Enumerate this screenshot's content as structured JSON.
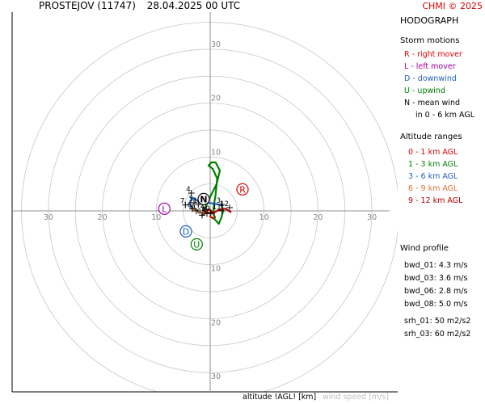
{
  "header": {
    "station": "PROSTEJOV (11747)",
    "datetime": "28.04.2025 00 UTC",
    "copyright": "CHMI © 2025"
  },
  "sidebar": {
    "title": "HODOGRAPH",
    "storm_motions_heading": "Storm motions",
    "storm_motions": [
      {
        "text": "R - right mover",
        "color": "#e00000"
      },
      {
        "text": "L - left mover",
        "color": "#a000a0"
      },
      {
        "text": "D - downwind",
        "color": "#2060c0"
      },
      {
        "text": "U - upwind",
        "color": "#008000"
      },
      {
        "text": "N - mean wind",
        "color": "#000000"
      }
    ],
    "storm_motions_note": "in 0 - 6 km AGL",
    "altitude_heading": "Altitude ranges",
    "altitude_ranges": [
      {
        "text": "0 - 1 km AGL",
        "color": "#e00000"
      },
      {
        "text": "1 - 3 km AGL",
        "color": "#008000"
      },
      {
        "text": "3 - 6 km AGL",
        "color": "#2060c0"
      },
      {
        "text": "6 - 9 km AGL",
        "color": "#e07030"
      },
      {
        "text": "9 - 12 km AGL",
        "color": "#b00000"
      }
    ],
    "wind_profile_heading": "Wind profile",
    "bulk_shear": [
      "bwd_01: 4.3 m/s",
      "bwd_03: 3.6 m/s",
      "bwd_06: 2.8 m/s",
      "bwd_08: 5.0 m/s"
    ],
    "helicity": [
      "srh_01: 50 m2/s2",
      "srh_03: 60 m2/s2"
    ]
  },
  "footer": {
    "altitude_label": "altitude !AGL! [km]",
    "wind_label": "wind speed [m/s]"
  },
  "chart_data": {
    "type": "line",
    "ring_step": 5,
    "ring_max": 35,
    "axis_tick_labels": [
      "10",
      "20",
      "30"
    ],
    "grid": true,
    "colors": {
      "ring": "#c8c8c8",
      "axis": "#909090",
      "tick_text": "#888888"
    },
    "segments": [
      {
        "name": "0 - 1 km AGL",
        "color": "#e00000",
        "points": [
          [
            0.0,
            -1.0
          ],
          [
            0.5,
            -1.4
          ],
          [
            0.9,
            -1.2
          ],
          [
            0.6,
            -0.6
          ],
          [
            0.2,
            0.0
          ],
          [
            -0.2,
            0.3
          ],
          [
            -0.6,
            0.0
          ],
          [
            -1.0,
            -0.5
          ],
          [
            -1.5,
            -0.8
          ]
        ]
      },
      {
        "name": "1 - 3 km AGL",
        "color": "#008000",
        "points": [
          [
            -1.5,
            -0.8
          ],
          [
            -0.3,
            2.0
          ],
          [
            1.2,
            5.0
          ],
          [
            1.8,
            7.5
          ],
          [
            1.0,
            9.0
          ],
          [
            0.2,
            9.0
          ],
          [
            -0.3,
            8.4
          ],
          [
            0.5,
            7.8
          ],
          [
            1.3,
            6.0
          ],
          [
            1.0,
            3.0
          ],
          [
            0.6,
            0.5
          ],
          [
            0.8,
            -1.5
          ],
          [
            1.6,
            -2.4
          ],
          [
            2.1,
            -1.2
          ],
          [
            2.4,
            0.0
          ],
          [
            2.2,
            1.0
          ]
        ]
      },
      {
        "name": "3 - 6 km AGL",
        "color": "#2060c0",
        "points": [
          [
            2.2,
            1.0
          ],
          [
            0.6,
            1.4
          ],
          [
            -0.8,
            1.5
          ],
          [
            -2.2,
            1.8
          ],
          [
            -3.4,
            2.5
          ],
          [
            -3.8,
            1.2
          ],
          [
            -3.4,
            0.4
          ]
        ]
      },
      {
        "name": "6 - 9 km AGL",
        "color": "#e07030",
        "points": [
          [
            -3.4,
            0.4
          ],
          [
            -2.4,
            0.1
          ],
          [
            -1.6,
            -0.4
          ],
          [
            -0.8,
            -0.3
          ]
        ]
      },
      {
        "name": "9 - 12 km AGL",
        "color": "#b00000",
        "points": [
          [
            -0.8,
            -0.3
          ],
          [
            0.4,
            -0.5
          ],
          [
            1.6,
            0.2
          ],
          [
            2.8,
            0.4
          ],
          [
            3.8,
            -0.2
          ]
        ]
      }
    ],
    "altitude_marks": [
      {
        "label": "0",
        "u": -1.5,
        "v": -0.8
      },
      {
        "label": "1",
        "u": -2.2,
        "v": 1.2
      },
      {
        "label": "2",
        "u": -0.9,
        "v": 0.3
      },
      {
        "label": "3",
        "u": 2.1,
        "v": 1.2
      },
      {
        "label": "4",
        "u": -3.5,
        "v": 3.3
      },
      {
        "label": "5",
        "u": -3.0,
        "v": 1.5
      },
      {
        "label": "6",
        "u": -3.3,
        "v": 0.4
      },
      {
        "label": "7",
        "u": -4.6,
        "v": 1.1
      },
      {
        "label": "8",
        "u": -0.6,
        "v": -0.5
      },
      {
        "label": "9",
        "u": -2.6,
        "v": 0.0
      },
      {
        "label": "10",
        "u": 0.1,
        "v": -0.3
      },
      {
        "label": "11",
        "u": 2.2,
        "v": 0.0
      },
      {
        "label": "12",
        "u": 3.6,
        "v": 0.6
      }
    ],
    "storm_motions": [
      {
        "label": "R",
        "u": 6.0,
        "v": 4.0,
        "color": "#e00000"
      },
      {
        "label": "L",
        "u": -8.5,
        "v": 0.4,
        "color": "#a000a0"
      },
      {
        "label": "D",
        "u": -4.5,
        "v": -3.8,
        "color": "#2060c0"
      },
      {
        "label": "U",
        "u": -2.5,
        "v": -6.2,
        "color": "#008000"
      },
      {
        "label": "N",
        "u": -1.2,
        "v": 2.2,
        "color": "#000000"
      }
    ]
  }
}
